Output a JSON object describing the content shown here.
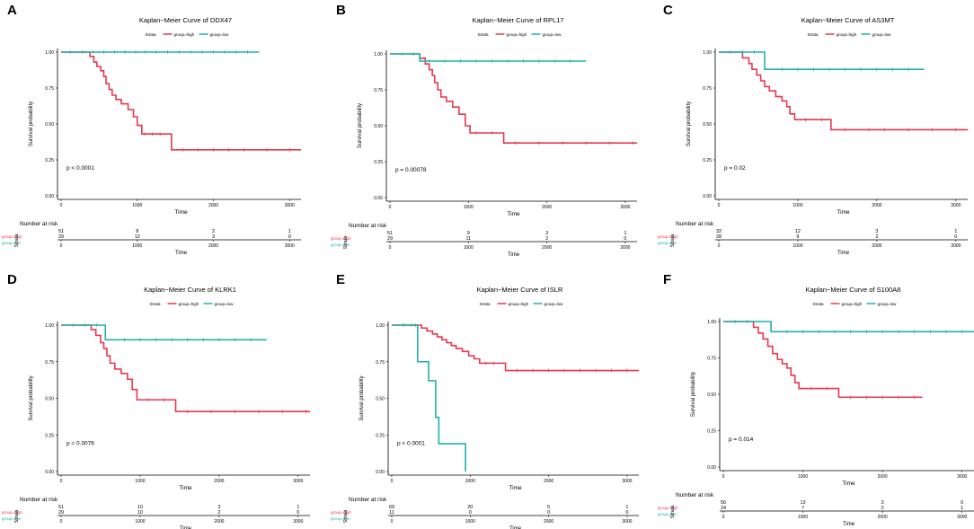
{
  "colors": {
    "high": "#e8384f",
    "low": "#20b2aa",
    "axis": "#000000"
  },
  "common": {
    "ylabel": "Survival probability",
    "xlabel": "Time",
    "strata_title": "Strata",
    "legend_high": "group=high",
    "legend_low": "group=low",
    "risk_title": "Number at risk",
    "risk_side_label": "Strata",
    "y_ticks": [
      "0.00",
      "0.25",
      "0.50",
      "0.75",
      "1.00"
    ],
    "x_ticks": [
      "0",
      "1000",
      "2000",
      "3000"
    ],
    "risk_times": [
      0,
      1000,
      2000,
      3000
    ]
  },
  "chart_data": [
    {
      "type": "line",
      "letter": "A",
      "title": "Kaplan−Meier Curve of DDX47",
      "pvalue": "p < 0.0001",
      "xlim": [
        0,
        3150
      ],
      "ylim": [
        0,
        1
      ],
      "series": [
        {
          "name": "group=high",
          "end": 3150,
          "steps": [
            [
              0,
              1
            ],
            [
              380,
              0.97
            ],
            [
              430,
              0.93
            ],
            [
              470,
              0.9
            ],
            [
              520,
              0.87
            ],
            [
              560,
              0.83
            ],
            [
              590,
              0.78
            ],
            [
              630,
              0.74
            ],
            [
              670,
              0.7
            ],
            [
              720,
              0.67
            ],
            [
              790,
              0.64
            ],
            [
              880,
              0.6
            ],
            [
              950,
              0.55
            ],
            [
              1000,
              0.49
            ],
            [
              1060,
              0.43
            ],
            [
              1450,
              0.32
            ]
          ],
          "censors": [
            1100,
            1200,
            1300,
            1600,
            1800,
            2000,
            2200,
            2400,
            2700,
            3000
          ]
        },
        {
          "name": "group=low",
          "end": 2600,
          "steps": [
            [
              0,
              1
            ]
          ],
          "censors": [
            120,
            280,
            420,
            560,
            700,
            840,
            980,
            1100,
            1250,
            1400,
            1550,
            1700,
            1850,
            2000,
            2150,
            2300,
            2450
          ]
        }
      ],
      "risk": {
        "high": [
          "51",
          "8",
          "2",
          "1"
        ],
        "low": [
          "29",
          "12",
          "3",
          "0"
        ]
      }
    },
    {
      "type": "line",
      "letter": "B",
      "title": "Kaplan−Meier Curve of RPL17",
      "pvalue": "p = 0.00078",
      "xlim": [
        0,
        3150
      ],
      "ylim": [
        0,
        1
      ],
      "series": [
        {
          "name": "group=high",
          "end": 3150,
          "steps": [
            [
              0,
              1
            ],
            [
              380,
              0.97
            ],
            [
              450,
              0.93
            ],
            [
              500,
              0.89
            ],
            [
              540,
              0.85
            ],
            [
              570,
              0.8
            ],
            [
              610,
              0.75
            ],
            [
              650,
              0.7
            ],
            [
              720,
              0.67
            ],
            [
              800,
              0.63
            ],
            [
              880,
              0.58
            ],
            [
              960,
              0.5
            ],
            [
              1020,
              0.45
            ],
            [
              1450,
              0.38
            ]
          ],
          "censors": [
            1100,
            1300,
            1600,
            1900,
            2200,
            2500,
            2800,
            3100
          ]
        },
        {
          "name": "group=low",
          "end": 2500,
          "steps": [
            [
              0,
              1
            ],
            [
              380,
              0.95
            ]
          ],
          "censors": [
            150,
            300,
            500,
            700,
            900,
            1100,
            1300,
            1500,
            1700,
            1900,
            2100,
            2300
          ]
        }
      ],
      "risk": {
        "high": [
          "51",
          "9",
          "3",
          "1"
        ],
        "low": [
          "29",
          "11",
          "2",
          "0"
        ]
      }
    },
    {
      "type": "line",
      "letter": "C",
      "title": "Kaplan−Meier Curve of AS3MT",
      "pvalue": "p = 0.02",
      "xlim": [
        0,
        3150
      ],
      "ylim": [
        0,
        1
      ],
      "series": [
        {
          "name": "group=high",
          "end": 3150,
          "steps": [
            [
              0,
              1
            ],
            [
              300,
              0.96
            ],
            [
              380,
              0.92
            ],
            [
              420,
              0.88
            ],
            [
              480,
              0.84
            ],
            [
              530,
              0.8
            ],
            [
              580,
              0.76
            ],
            [
              640,
              0.73
            ],
            [
              720,
              0.69
            ],
            [
              800,
              0.66
            ],
            [
              860,
              0.62
            ],
            [
              900,
              0.57
            ],
            [
              960,
              0.53
            ],
            [
              1420,
              0.46
            ]
          ],
          "censors": [
            1100,
            1300,
            1600,
            1900,
            2100,
            2400,
            2700,
            3000
          ]
        },
        {
          "name": "group=low",
          "end": 2600,
          "steps": [
            [
              0,
              1
            ],
            [
              580,
              0.88
            ]
          ],
          "censors": [
            150,
            300,
            450,
            800,
            1000,
            1200,
            1400,
            1600,
            1800,
            2000,
            2200,
            2400
          ]
        }
      ],
      "risk": {
        "high": [
          "32",
          "12",
          "3",
          "1"
        ],
        "low": [
          "28",
          "9",
          "2",
          "0"
        ]
      }
    },
    {
      "type": "line",
      "letter": "D",
      "title": "Kaplan−Meier Curve of KLRK1",
      "pvalue": "p = 0.0076",
      "xlim": [
        0,
        3150
      ],
      "ylim": [
        0,
        1
      ],
      "series": [
        {
          "name": "group=high",
          "end": 3150,
          "steps": [
            [
              0,
              1
            ],
            [
              380,
              0.97
            ],
            [
              440,
              0.93
            ],
            [
              500,
              0.88
            ],
            [
              540,
              0.84
            ],
            [
              580,
              0.79
            ],
            [
              620,
              0.74
            ],
            [
              680,
              0.7
            ],
            [
              760,
              0.67
            ],
            [
              840,
              0.63
            ],
            [
              900,
              0.56
            ],
            [
              960,
              0.49
            ],
            [
              1450,
              0.41
            ]
          ],
          "censors": [
            1100,
            1300,
            1600,
            1900,
            2200,
            2500,
            2800,
            3100
          ]
        },
        {
          "name": "group=low",
          "end": 2600,
          "steps": [
            [
              0,
              1
            ],
            [
              560,
              0.9
            ]
          ],
          "censors": [
            150,
            300,
            450,
            800,
            1000,
            1200,
            1400,
            1600,
            1800,
            2000,
            2200,
            2400
          ]
        }
      ],
      "risk": {
        "high": [
          "51",
          "10",
          "3",
          "1"
        ],
        "low": [
          "29",
          "10",
          "2",
          "0"
        ]
      }
    },
    {
      "type": "line",
      "letter": "E",
      "title": "Kaplan−Meier Curve of ISLR",
      "pvalue": "p < 0.0001",
      "xlim": [
        0,
        3150
      ],
      "ylim": [
        0,
        1
      ],
      "series": [
        {
          "name": "group=high",
          "end": 3150,
          "steps": [
            [
              0,
              1
            ],
            [
              380,
              0.98
            ],
            [
              450,
              0.96
            ],
            [
              520,
              0.94
            ],
            [
              580,
              0.92
            ],
            [
              640,
              0.9
            ],
            [
              700,
              0.88
            ],
            [
              760,
              0.86
            ],
            [
              820,
              0.84
            ],
            [
              900,
              0.82
            ],
            [
              980,
              0.79
            ],
            [
              1050,
              0.77
            ],
            [
              1120,
              0.74
            ],
            [
              1450,
              0.69
            ]
          ],
          "censors": [
            150,
            300,
            1200,
            1300,
            1600,
            1800,
            2000,
            2200,
            2400,
            2600,
            2800,
            3000
          ]
        },
        {
          "name": "group=low",
          "end": 940,
          "steps": [
            [
              0,
              1
            ],
            [
              330,
              0.75
            ],
            [
              470,
              0.62
            ],
            [
              560,
              0.37
            ],
            [
              600,
              0.19
            ],
            [
              940,
              0
            ]
          ],
          "censors": [
            150,
            250
          ]
        }
      ],
      "risk": {
        "high": [
          "69",
          "20",
          "5",
          "1"
        ],
        "low": [
          "11",
          "0",
          "0",
          "0"
        ]
      }
    },
    {
      "type": "line",
      "letter": "F",
      "title": "Kaplan−Meier Curve of S100A8",
      "pvalue": "p = 0.014",
      "xlim": [
        0,
        3150
      ],
      "ylim": [
        0,
        1
      ],
      "series": [
        {
          "name": "group=high",
          "end": 2500,
          "steps": [
            [
              0,
              1
            ],
            [
              380,
              0.96
            ],
            [
              440,
              0.92
            ],
            [
              500,
              0.88
            ],
            [
              560,
              0.83
            ],
            [
              620,
              0.78
            ],
            [
              680,
              0.74
            ],
            [
              740,
              0.71
            ],
            [
              800,
              0.68
            ],
            [
              850,
              0.63
            ],
            [
              900,
              0.58
            ],
            [
              950,
              0.54
            ],
            [
              1450,
              0.48
            ]
          ],
          "censors": [
            1100,
            1300,
            1600,
            1800,
            2000,
            2200,
            2400
          ]
        },
        {
          "name": "group=low",
          "end": 3150,
          "steps": [
            [
              0,
              1
            ],
            [
              600,
              0.93
            ]
          ],
          "censors": [
            150,
            300,
            800,
            1000,
            1200,
            1400,
            1600,
            1800,
            2000,
            2200,
            2400,
            2600,
            2800,
            3000
          ]
        }
      ],
      "risk": {
        "high": [
          "56",
          "13",
          "3",
          "0"
        ],
        "low": [
          "24",
          "7",
          "2",
          "1"
        ]
      }
    }
  ]
}
